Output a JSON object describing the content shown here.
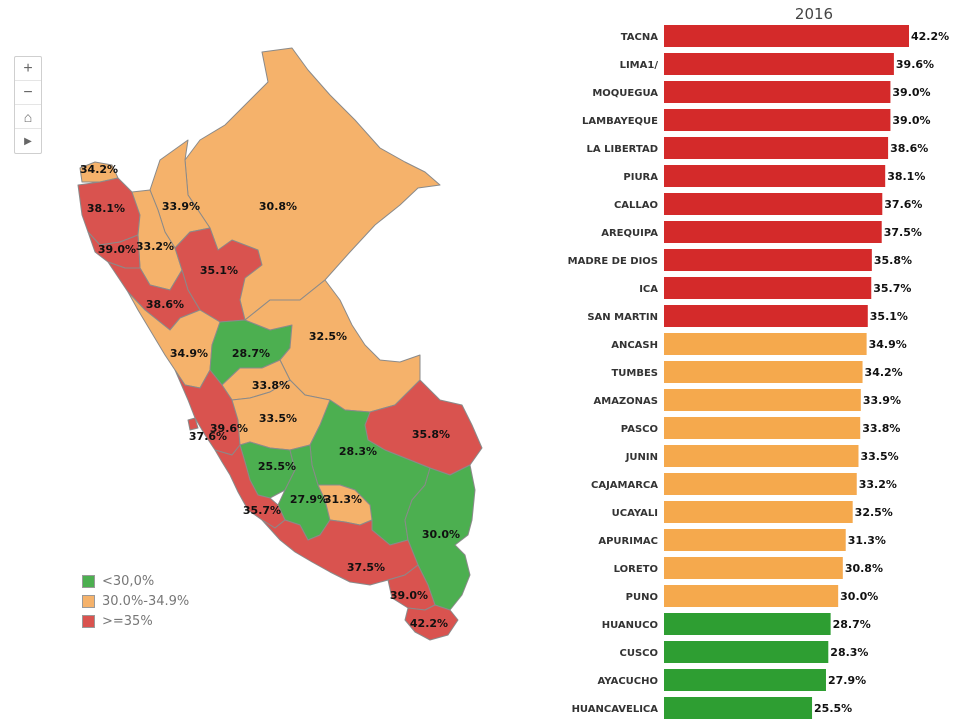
{
  "map_controls": {
    "zoom_in": "+",
    "zoom_out": "−",
    "home": "⌂",
    "play": "▶"
  },
  "legend": {
    "items": [
      {
        "label": "<30,0%",
        "color": "#4caf50"
      },
      {
        "label": "30.0%-34.9%",
        "color": "#f5b26b"
      },
      {
        "label": ">=35%",
        "color": "#d9534f"
      }
    ]
  },
  "map_labels": [
    {
      "region": "TUMBES",
      "text": "34.2%"
    },
    {
      "region": "PIURA",
      "text": "38.1%"
    },
    {
      "region": "AMAZONAS",
      "text": "33.9%"
    },
    {
      "region": "LORETO",
      "text": "30.8%"
    },
    {
      "region": "LAMBAYEQUE",
      "text": "39.0%"
    },
    {
      "region": "CAJAMARCA",
      "text": "33.2%"
    },
    {
      "region": "SAN MARTIN",
      "text": "35.1%"
    },
    {
      "region": "LA LIBERTAD",
      "text": "38.6%"
    },
    {
      "region": "ANCASH",
      "text": "34.9%"
    },
    {
      "region": "HUANUCO",
      "text": "28.7%"
    },
    {
      "region": "UCAYALI",
      "text": "32.5%"
    },
    {
      "region": "PASCO",
      "text": "33.8%"
    },
    {
      "region": "JUNIN",
      "text": "33.5%"
    },
    {
      "region": "LIMA1/",
      "text": "39.6%"
    },
    {
      "region": "CALLAO",
      "text": "37.6%"
    },
    {
      "region": "MADRE DE DIOS",
      "text": "35.8%"
    },
    {
      "region": "CUSCO",
      "text": "28.3%"
    },
    {
      "region": "HUANCAVELICA",
      "text": "25.5%"
    },
    {
      "region": "AYACUCHO",
      "text": "27.9%"
    },
    {
      "region": "APURIMAC",
      "text": "31.3%"
    },
    {
      "region": "ICA",
      "text": "35.7%"
    },
    {
      "region": "PUNO",
      "text": "30.0%"
    },
    {
      "region": "AREQUIPA",
      "text": "37.5%"
    },
    {
      "region": "MOQUEGUA",
      "text": "39.0%"
    },
    {
      "region": "TACNA",
      "text": "42.2%"
    }
  ],
  "chart_data": {
    "type": "bar",
    "orientation": "horizontal",
    "title": "2016",
    "colors": {
      "high": "#d42a2a",
      "mid": "#f5a94d",
      "low": "#2e9e32"
    },
    "categories": [
      "TACNA",
      "LIMA1/",
      "MOQUEGUA",
      "LAMBAYEQUE",
      "LA LIBERTAD",
      "PIURA",
      "CALLAO",
      "AREQUIPA",
      "MADRE DE DIOS",
      "ICA",
      "SAN MARTIN",
      "ANCASH",
      "TUMBES",
      "AMAZONAS",
      "PASCO",
      "JUNIN",
      "CAJAMARCA",
      "UCAYALI",
      "APURIMAC",
      "LORETO",
      "PUNO",
      "HUANUCO",
      "CUSCO",
      "AYACUCHO",
      "HUANCAVELICA"
    ],
    "values": [
      42.2,
      39.6,
      39.0,
      39.0,
      38.6,
      38.1,
      37.6,
      37.5,
      35.8,
      35.7,
      35.1,
      34.9,
      34.2,
      33.9,
      33.8,
      33.5,
      33.2,
      32.5,
      31.3,
      30.8,
      30.0,
      28.7,
      28.3,
      27.9,
      25.5
    ],
    "value_labels": [
      "42.2%",
      "39.6%",
      "39.0%",
      "39.0%",
      "38.6%",
      "38.1%",
      "37.6%",
      "37.5%",
      "35.8%",
      "35.7%",
      "35.1%",
      "34.9%",
      "34.2%",
      "33.9%",
      "33.8%",
      "33.5%",
      "33.2%",
      "32.5%",
      "31.3%",
      "30.8%",
      "30.0%",
      "28.7%",
      "28.3%",
      "27.9%",
      "25.5%"
    ],
    "xlim": [
      0,
      42.2
    ],
    "grid": false
  }
}
